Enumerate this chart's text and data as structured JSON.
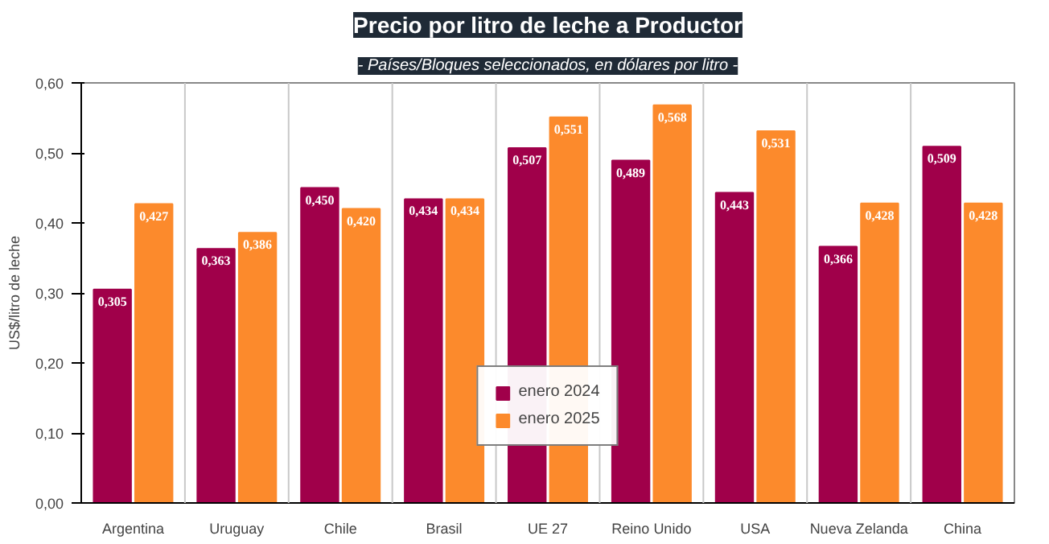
{
  "chart_data": {
    "type": "bar",
    "title": "Precio por litro de leche a Productor",
    "subtitle": "- Países/Bloques seleccionados, en dólares por litro -",
    "ylabel": "US$/litro de leche",
    "categories": [
      "Argentina",
      "Uruguay",
      "Chile",
      "Brasil",
      "UE 27",
      "Reino Unido",
      "USA",
      "Nueva Zelanda",
      "China"
    ],
    "series": [
      {
        "name": "enero 2024",
        "color": "#a0004a",
        "values": [
          0.305,
          0.363,
          0.45,
          0.434,
          0.507,
          0.489,
          0.443,
          0.366,
          0.509
        ],
        "value_labels": [
          "0,305",
          "0,363",
          "0,450",
          "0,434",
          "0,507",
          "0,489",
          "0,443",
          "0,366",
          "0,509"
        ]
      },
      {
        "name": "enero 2025",
        "color": "#fc8a2c",
        "values": [
          0.427,
          0.386,
          0.42,
          0.434,
          0.551,
          0.568,
          0.531,
          0.428,
          0.428
        ],
        "value_labels": [
          "0,427",
          "0,386",
          "0,420",
          "0,434",
          "0,551",
          "0,568",
          "0,531",
          "0,428",
          "0,428"
        ]
      }
    ],
    "ylim": [
      0,
      0.6
    ],
    "yticks": [
      {
        "value": 0,
        "label": "0,00"
      },
      {
        "value": 0.1,
        "label": "0,10"
      },
      {
        "value": 0.2,
        "label": "0,20"
      },
      {
        "value": 0.3,
        "label": "0,30"
      },
      {
        "value": 0.4,
        "label": "0,40"
      },
      {
        "value": 0.5,
        "label": "0,50"
      },
      {
        "value": 0.6,
        "label": "0,60"
      }
    ],
    "grid": "x",
    "legend": "bottom"
  }
}
